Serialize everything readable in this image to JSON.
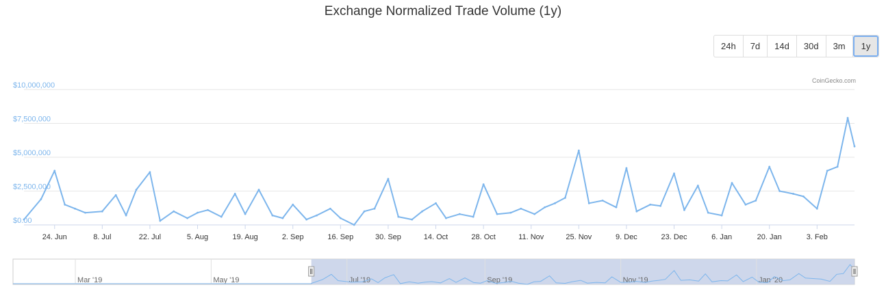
{
  "title": "Exchange Normalized Trade Volume (1y)",
  "range_buttons": [
    "24h",
    "7d",
    "14d",
    "30d",
    "3m",
    "1y"
  ],
  "active_range": "1y",
  "credit": "CoinGecko.com",
  "colors": {
    "series": "#7cb5ec",
    "navigator_mask": "#c6d0e8",
    "grid": "#e6e6e6"
  },
  "chart_data": {
    "type": "line",
    "title": "Exchange Normalized Trade Volume (1y)",
    "ylim": [
      0,
      10000000
    ],
    "y_ticks": [
      "$0.00",
      "$2,500,000",
      "$5,000,000",
      "$7,500,000",
      "$10,000,000"
    ],
    "y_tick_values": [
      0,
      2500000,
      5000000,
      7500000,
      10000000
    ],
    "x_ticks": [
      "24. Jun",
      "8. Jul",
      "22. Jul",
      "5. Aug",
      "19. Aug",
      "2. Sep",
      "16. Sep",
      "30. Sep",
      "14. Oct",
      "28. Oct",
      "11. Nov",
      "25. Nov",
      "9. Dec",
      "23. Dec",
      "6. Jan",
      "20. Jan",
      "3. Feb"
    ],
    "grid": true,
    "series": [
      {
        "x": [
          "2019-06-15",
          "2019-06-20",
          "2019-06-24",
          "2019-06-27",
          "2019-06-30",
          "2019-07-03",
          "2019-07-08",
          "2019-07-12",
          "2019-07-15",
          "2019-07-18",
          "2019-07-22",
          "2019-07-25",
          "2019-07-29",
          "2019-08-02",
          "2019-08-05",
          "2019-08-08",
          "2019-08-12",
          "2019-08-16",
          "2019-08-19",
          "2019-08-23",
          "2019-08-27",
          "2019-08-30",
          "2019-09-02",
          "2019-09-06",
          "2019-09-09",
          "2019-09-13",
          "2019-09-16",
          "2019-09-20",
          "2019-09-23",
          "2019-09-26",
          "2019-09-30",
          "2019-10-03",
          "2019-10-07",
          "2019-10-10",
          "2019-10-14",
          "2019-10-17",
          "2019-10-21",
          "2019-10-25",
          "2019-10-28",
          "2019-11-01",
          "2019-11-05",
          "2019-11-08",
          "2019-11-12",
          "2019-11-15",
          "2019-11-18",
          "2019-11-21",
          "2019-11-25",
          "2019-11-28",
          "2019-12-02",
          "2019-12-06",
          "2019-12-09",
          "2019-12-12",
          "2019-12-16",
          "2019-12-19",
          "2019-12-23",
          "2019-12-26",
          "2019-12-30",
          "2020-01-02",
          "2020-01-06",
          "2020-01-09",
          "2020-01-13",
          "2020-01-16",
          "2020-01-20",
          "2020-01-23",
          "2020-01-27",
          "2020-01-30",
          "2020-02-03",
          "2020-02-06",
          "2020-02-09",
          "2020-02-12",
          "2020-02-14"
        ],
        "values": [
          400000,
          1900000,
          4000000,
          1500000,
          1200000,
          900000,
          1000000,
          2200000,
          700000,
          2600000,
          3900000,
          300000,
          1000000,
          500000,
          900000,
          1100000,
          600000,
          2300000,
          800000,
          2600000,
          700000,
          500000,
          1500000,
          400000,
          700000,
          1200000,
          500000,
          0,
          1000000,
          1200000,
          3400000,
          600000,
          400000,
          1000000,
          1600000,
          500000,
          800000,
          600000,
          3000000,
          800000,
          900000,
          1200000,
          800000,
          1300000,
          1600000,
          2000000,
          5500000,
          1600000,
          1800000,
          1300000,
          4200000,
          1000000,
          1500000,
          1400000,
          3800000,
          1100000,
          2900000,
          900000,
          700000,
          3100000,
          1500000,
          1800000,
          4300000,
          2500000,
          2300000,
          2100000,
          1200000,
          4000000,
          4300000,
          7900000,
          5800000
        ]
      }
    ],
    "navigator": {
      "labels": [
        "Mar '19",
        "May '19",
        "Jul '19",
        "Sep '19",
        "Nov '19",
        "Jan '20"
      ],
      "selected_range": [
        "2019-06-15",
        "2020-02-14"
      ]
    }
  }
}
